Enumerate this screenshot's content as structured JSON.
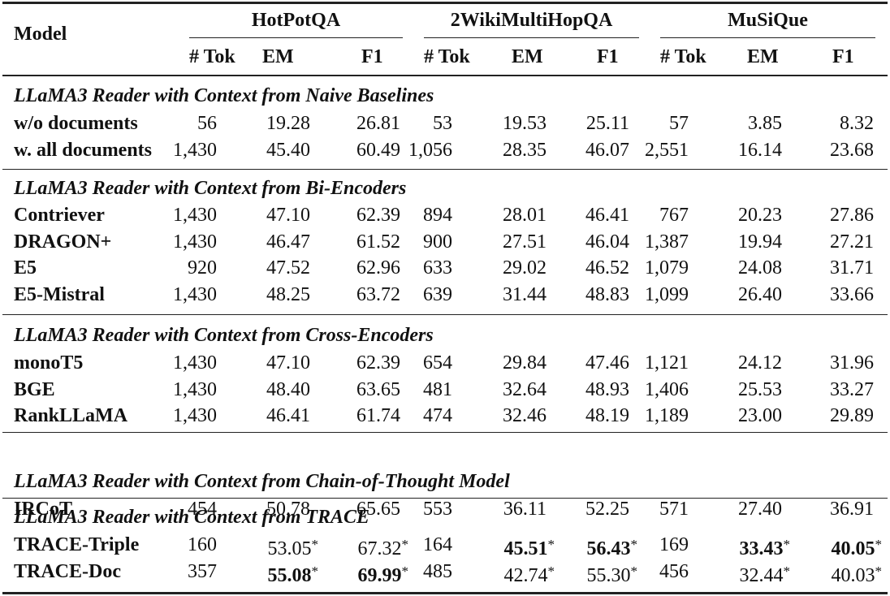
{
  "table": {
    "model_header": "Model",
    "datasets": [
      {
        "name": "HotPotQA",
        "columns": [
          "# Tok",
          "EM",
          "F1"
        ]
      },
      {
        "name": "2WikiMultiHopQA",
        "columns": [
          "# Tok",
          "EM",
          "F1"
        ]
      },
      {
        "name": "MuSiQue",
        "columns": [
          "# Tok",
          "EM",
          "F1"
        ]
      }
    ],
    "groups": [
      {
        "title": "LLaMA3 Reader with Context from Naive Baselines",
        "rows": [
          {
            "model": "w/o documents",
            "values": [
              "56",
              "19.28",
              "26.81",
              "53",
              "19.53",
              "25.11",
              "57",
              "3.85",
              "8.32"
            ]
          },
          {
            "model": "w. all documents",
            "values": [
              "1,430",
              "45.40",
              "60.49",
              "1,056",
              "28.35",
              "46.07",
              "2,551",
              "16.14",
              "23.68"
            ]
          }
        ]
      },
      {
        "title": "LLaMA3 Reader with Context from Bi-Encoders",
        "rows": [
          {
            "model": "Contriever",
            "values": [
              "1,430",
              "47.10",
              "62.39",
              "894",
              "28.01",
              "46.41",
              "767",
              "20.23",
              "27.86"
            ]
          },
          {
            "model": "DRAGON+",
            "values": [
              "1,430",
              "46.47",
              "61.52",
              "900",
              "27.51",
              "46.04",
              "1,387",
              "19.94",
              "27.21"
            ]
          },
          {
            "model": "E5",
            "values": [
              "920",
              "47.52",
              "62.96",
              "633",
              "29.02",
              "46.52",
              "1,079",
              "24.08",
              "31.71"
            ]
          },
          {
            "model": "E5-Mistral",
            "values": [
              "1,430",
              "48.25",
              "63.72",
              "639",
              "31.44",
              "48.83",
              "1,099",
              "26.40",
              "33.66"
            ]
          }
        ]
      },
      {
        "title": "LLaMA3 Reader with Context from Cross-Encoders",
        "rows": [
          {
            "model": "monoT5",
            "values": [
              "1,430",
              "47.10",
              "62.39",
              "654",
              "29.84",
              "47.46",
              "1,121",
              "24.12",
              "31.96"
            ]
          },
          {
            "model": "BGE",
            "values": [
              "1,430",
              "48.40",
              "63.65",
              "481",
              "32.64",
              "48.93",
              "1,406",
              "25.53",
              "33.27"
            ]
          },
          {
            "model": "RankLLaMA",
            "values": [
              "1,430",
              "46.41",
              "61.74",
              "474",
              "32.46",
              "48.19",
              "1,189",
              "23.00",
              "29.89"
            ]
          }
        ]
      },
      {
        "title": "LLaMA3 Reader with Context from Chain-of-Thought Model",
        "rows": [
          {
            "model": "IRCoT",
            "values": [
              "454",
              "50.78",
              "65.65",
              "553",
              "36.11",
              "52.25",
              "571",
              "27.40",
              "36.91"
            ]
          }
        ]
      },
      {
        "title": "LLaMA3 Reader with Context from TRACE",
        "rows": [
          {
            "model": "TRACE-Triple",
            "values": [
              "160",
              "53.05",
              "67.32",
              "164",
              "45.51",
              "56.43",
              "169",
              "33.43",
              "40.05"
            ]
          },
          {
            "model": "TRACE-Doc",
            "values": [
              "357",
              "55.08",
              "69.99",
              "485",
              "42.74",
              "55.30",
              "456",
              "32.44",
              "40.03"
            ]
          }
        ]
      }
    ],
    "significance_marker": "*"
  }
}
